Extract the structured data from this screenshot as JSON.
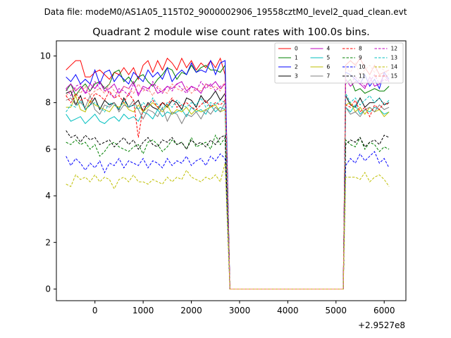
{
  "suptitle": "Data file: modeM0/AS1A05_115T02_9000002906_19558cztM0_level2_quad_clean.evt",
  "chart_data": {
    "type": "line",
    "title": "Quadrant 2 module wise count rates with 100.0s bins.",
    "xlabel": "",
    "ylabel": "",
    "x_offset_label": "+2.9527e8",
    "xlim": [
      -800,
      6450
    ],
    "ylim": [
      -0.5,
      10.65
    ],
    "x_ticks": [
      0,
      1000,
      2000,
      3000,
      4000,
      5000,
      6000
    ],
    "y_ticks": [
      0,
      2,
      4,
      6,
      8,
      10
    ],
    "grid": false,
    "legend_position": "top-right",
    "legend_columns": 4,
    "x": [
      -600,
      -500,
      -400,
      -300,
      -200,
      -100,
      0,
      100,
      200,
      300,
      400,
      500,
      600,
      700,
      800,
      900,
      1000,
      1100,
      1200,
      1300,
      1400,
      1500,
      1600,
      1700,
      1800,
      1900,
      2000,
      2100,
      2200,
      2300,
      2400,
      2500,
      2600,
      2700,
      2800,
      2900,
      3000,
      3050,
      3100,
      3200,
      3300,
      3400,
      3500,
      3600,
      3700,
      3800,
      3900,
      4000,
      4100,
      4200,
      4300,
      4400,
      4500,
      4600,
      4700,
      4800,
      4900,
      5000,
      5100,
      5150,
      5200,
      5300,
      5400,
      5500,
      5600,
      5700,
      5800,
      5900,
      6000,
      6100
    ],
    "series": [
      {
        "name": "0",
        "color": "#ff0000",
        "dash": "solid",
        "before": [
          9.4,
          9.6,
          9.8,
          9.8,
          9.1,
          9.1,
          9.3,
          9.4,
          9.2,
          9.0,
          9.3,
          9.2,
          9.5,
          9.2,
          9.5,
          9.0,
          9.6,
          9.8,
          9.3,
          9.8,
          9.4,
          9.9,
          9.7,
          9.4,
          9.9,
          9.5,
          9.8,
          9.4,
          9.7,
          9.5,
          9.8,
          9.5,
          9.9,
          9.2
        ],
        "after": [
          9.6,
          9.8,
          9.6,
          9.9,
          9.5,
          9.2,
          9.6,
          9.2,
          9.3,
          9.4
        ]
      },
      {
        "name": "1",
        "color": "#008000",
        "dash": "solid",
        "before": [
          8.5,
          8.8,
          8.3,
          8.6,
          8.8,
          8.5,
          8.8,
          8.9,
          8.6,
          8.8,
          9.3,
          9.4,
          8.9,
          9.1,
          8.8,
          9.1,
          9.2,
          8.9,
          8.7,
          9.0,
          9.2,
          9.5,
          9.4,
          9.0,
          9.3,
          9.2,
          9.6,
          9.3,
          9.5,
          9.6,
          9.4,
          9.4,
          9.3,
          9.6
        ],
        "after": [
          8.8,
          9.0,
          8.5,
          8.6,
          8.4,
          8.5,
          8.6,
          8.5,
          8.5,
          8.7
        ]
      },
      {
        "name": "2",
        "color": "#0000ff",
        "dash": "solid",
        "before": [
          9.1,
          8.9,
          9.2,
          8.8,
          9.0,
          8.8,
          9.4,
          8.8,
          9.3,
          9.4,
          8.9,
          9.2,
          9.0,
          8.8,
          9.3,
          9.1,
          8.9,
          9.4,
          9.1,
          9.3,
          9.0,
          9.5,
          8.9,
          9.2,
          9.4,
          9.2,
          9.7,
          9.3,
          9.4,
          9.3,
          9.8,
          9.2,
          9.7,
          9.8
        ],
        "after": [
          9.3,
          9.2,
          9.0,
          8.8,
          9.2,
          8.7,
          9.0,
          8.6,
          9.3,
          9.0
        ]
      },
      {
        "name": "3",
        "color": "#000000",
        "dash": "solid",
        "before": [
          8.4,
          8.5,
          7.9,
          8.3,
          7.7,
          7.9,
          8.2,
          7.7,
          8.1,
          7.9,
          8.0,
          7.7,
          8.2,
          7.8,
          7.9,
          8.1,
          7.6,
          8.0,
          7.8,
          7.7,
          8.0,
          7.8,
          8.1,
          8.0,
          7.7,
          8.2,
          8.1,
          7.8,
          8.3,
          8.0,
          8.2,
          8.5,
          8.1,
          8.4
        ],
        "after": [
          8.3,
          7.9,
          7.8,
          8.2,
          7.8,
          8.0,
          8.0,
          8.2,
          7.9,
          8.0
        ]
      },
      {
        "name": "4",
        "color": "#bf00bf",
        "dash": "solid",
        "before": [
          8.6,
          8.8,
          8.5,
          8.7,
          8.4,
          8.8,
          8.6,
          8.9,
          8.5,
          8.6,
          8.8,
          8.4,
          8.7,
          8.6,
          8.9,
          8.3,
          8.7,
          8.6,
          8.8,
          8.4,
          8.5,
          8.7,
          8.6,
          8.8,
          8.9,
          8.5,
          8.7,
          8.6,
          8.4,
          8.8,
          8.7,
          8.9,
          8.6,
          8.8
        ],
        "after": [
          9.0,
          8.7,
          8.9,
          8.8,
          8.6,
          9.1,
          8.7,
          8.8,
          9.2,
          8.9
        ]
      },
      {
        "name": "5",
        "color": "#00bfbf",
        "dash": "solid",
        "before": [
          7.5,
          7.2,
          7.3,
          7.4,
          7.1,
          7.3,
          7.5,
          7.2,
          7.1,
          7.3,
          7.4,
          7.2,
          7.5,
          7.3,
          7.4,
          7.2,
          7.6,
          7.5,
          7.3,
          7.7,
          7.4,
          7.6,
          7.5,
          7.6,
          7.7,
          7.4,
          7.8,
          7.6,
          7.7,
          7.5,
          7.9,
          7.6,
          7.8,
          7.7
        ],
        "after": [
          7.8,
          7.6,
          7.9,
          7.5,
          7.7,
          7.6,
          7.8,
          7.7,
          7.5,
          7.6
        ]
      },
      {
        "name": "6",
        "color": "#bfbf00",
        "dash": "solid",
        "before": [
          7.8,
          7.8,
          8.3,
          7.7,
          7.6,
          8.1,
          7.9,
          7.8,
          7.7,
          7.6,
          7.9,
          7.8,
          8.0,
          7.7,
          7.6,
          7.9,
          7.6,
          7.8,
          8.0,
          7.8,
          7.6,
          7.9,
          7.5,
          7.7,
          7.6,
          7.8,
          7.5,
          7.7,
          7.6,
          7.7,
          7.8,
          7.9,
          7.6,
          7.7
        ],
        "after": [
          7.9,
          8.0,
          7.6,
          7.8,
          7.5,
          7.8,
          7.6,
          7.7,
          7.4,
          7.6
        ]
      },
      {
        "name": "7",
        "color": "#808080",
        "dash": "solid",
        "before": [
          8.1,
          8.2,
          7.9,
          8.0,
          7.8,
          8.3,
          7.7,
          7.5,
          7.9,
          7.8,
          8.0,
          7.6,
          7.9,
          7.8,
          8.1,
          7.7,
          7.3,
          7.7,
          7.6,
          7.4,
          7.8,
          7.2,
          7.6,
          7.5,
          7.1,
          7.5,
          7.4,
          7.6,
          7.3,
          7.7,
          7.5,
          7.8,
          7.6,
          8.0
        ],
        "after": [
          7.8,
          7.5,
          7.6,
          7.4,
          7.7,
          7.8,
          7.6,
          7.9,
          7.7,
          7.8
        ]
      },
      {
        "name": "8",
        "color": "#ff0000",
        "dash": "dashed",
        "before": [
          8.3,
          8.0,
          8.4,
          8.1,
          8.2,
          8.0,
          8.4,
          8.3,
          8.1,
          8.5,
          8.2,
          8.3,
          8.0,
          8.4,
          8.1,
          6.5,
          7.8,
          7.9,
          8.1,
          7.8,
          8.0,
          7.9,
          8.2,
          7.8,
          7.9,
          8.0,
          7.8,
          7.7,
          7.9,
          8.1,
          7.8,
          8.0,
          7.9,
          8.1
        ],
        "after": [
          7.9,
          7.8,
          8.1,
          7.6,
          7.8,
          7.4,
          7.9,
          7.7,
          8.0,
          7.9
        ]
      },
      {
        "name": "9",
        "color": "#008000",
        "dash": "dashed",
        "before": [
          6.3,
          6.2,
          6.4,
          6.2,
          6.3,
          6.0,
          6.2,
          5.7,
          5.9,
          6.2,
          6.3,
          6.1,
          6.0,
          5.9,
          6.1,
          6.2,
          5.8,
          6.3,
          6.4,
          6.2,
          5.9,
          6.1,
          6.4,
          6.2,
          6.3,
          6.0,
          6.5,
          6.1,
          6.2,
          6.3,
          6.0,
          6.6,
          6.2,
          6.5
        ],
        "after": [
          6.4,
          6.2,
          6.1,
          6.5,
          6.0,
          6.3,
          6.2,
          5.9,
          6.1,
          6.0
        ]
      },
      {
        "name": "10",
        "color": "#0000ff",
        "dash": "dashed",
        "before": [
          5.7,
          5.3,
          5.6,
          5.4,
          5.1,
          5.4,
          5.2,
          5.5,
          5.0,
          5.4,
          5.3,
          5.6,
          5.2,
          5.5,
          5.4,
          5.3,
          5.6,
          5.2,
          5.5,
          5.4,
          5.2,
          5.6,
          5.3,
          5.5,
          5.4,
          5.7,
          5.3,
          5.5,
          5.6,
          5.3,
          5.7,
          5.5,
          5.8,
          5.6
        ],
        "after": [
          5.3,
          5.6,
          5.4,
          5.8,
          5.5,
          5.7,
          5.9,
          5.4,
          5.6,
          5.2
        ]
      },
      {
        "name": "11",
        "color": "#000000",
        "dash": "dashed",
        "before": [
          6.8,
          6.5,
          6.6,
          6.3,
          6.6,
          6.4,
          6.5,
          6.2,
          6.3,
          6.4,
          6.1,
          6.3,
          6.5,
          6.2,
          6.4,
          6.0,
          6.3,
          6.5,
          6.2,
          6.1,
          6.4,
          6.3,
          6.5,
          6.2,
          6.3,
          6.0,
          6.4,
          6.2,
          6.3,
          6.1,
          6.4,
          6.2,
          6.5,
          6.6
        ],
        "after": [
          6.2,
          6.4,
          6.3,
          6.5,
          6.1,
          6.3,
          6.4,
          6.2,
          6.6,
          6.5
        ]
      },
      {
        "name": "12",
        "color": "#bf00bf",
        "dash": "dashed",
        "before": [
          8.6,
          8.3,
          8.7,
          8.8,
          8.4,
          8.5,
          8.9,
          8.6,
          8.7,
          8.4,
          8.2,
          8.6,
          8.5,
          8.3,
          8.8,
          8.4,
          8.6,
          8.5,
          8.9,
          8.6,
          8.4,
          8.7,
          8.5,
          8.8,
          8.6,
          8.4,
          8.7,
          8.5,
          8.9,
          8.6,
          8.8,
          8.5,
          8.7,
          8.8
        ],
        "after": [
          9.0,
          8.8,
          9.1,
          8.9,
          8.7,
          8.9,
          9.2,
          8.8,
          9.0,
          8.9
        ]
      },
      {
        "name": "13",
        "color": "#00bfbf",
        "dash": "dashed",
        "before": [
          7.6,
          7.9,
          7.8,
          8.1,
          7.7,
          7.9,
          8.0,
          7.8,
          7.6,
          8.0,
          7.9,
          7.7,
          8.1,
          7.8,
          7.9,
          7.7,
          8.0,
          7.8,
          8.2,
          7.9,
          7.7,
          8.0,
          7.8,
          8.1,
          7.9,
          7.8,
          8.0,
          7.9,
          8.2,
          7.8,
          8.0,
          7.9,
          8.1,
          8.0
        ],
        "after": [
          8.4,
          8.0,
          8.2,
          7.9,
          8.1,
          8.3,
          8.0,
          8.2,
          7.9,
          8.1
        ]
      },
      {
        "name": "14",
        "color": "#bfbf00",
        "dash": "dashed",
        "before": [
          4.5,
          4.4,
          4.9,
          4.7,
          4.8,
          4.6,
          4.9,
          4.6,
          4.8,
          4.7,
          4.3,
          4.7,
          4.8,
          4.6,
          4.9,
          4.6,
          4.6,
          4.5,
          4.7,
          4.6,
          4.5,
          4.8,
          4.6,
          4.8,
          4.7,
          5.1,
          4.8,
          4.7,
          4.6,
          4.8,
          4.7,
          4.9,
          4.6,
          5.4
        ],
        "after": [
          4.8,
          4.8,
          4.8,
          4.7,
          5.0,
          4.6,
          4.8,
          4.9,
          4.7,
          4.4
        ]
      },
      {
        "name": "15",
        "color": "#fa8072",
        "dash": "dashed",
        "before": [
          8.3,
          8.5,
          8.6,
          8.4,
          8.7,
          8.3,
          8.5,
          8.6,
          8.4,
          8.8,
          8.5,
          8.3,
          8.7,
          8.6,
          8.4,
          8.8,
          8.5,
          8.6,
          8.3,
          8.7,
          8.5,
          8.4,
          8.8,
          8.6,
          8.5,
          8.7,
          8.4,
          8.6,
          8.5,
          8.8,
          8.6,
          8.7,
          8.5,
          8.9
        ],
        "after": [
          9.5,
          9.3,
          9.7,
          9.2,
          9.4,
          9.6,
          9.3,
          9.5,
          9.4,
          9.2
        ]
      }
    ]
  }
}
